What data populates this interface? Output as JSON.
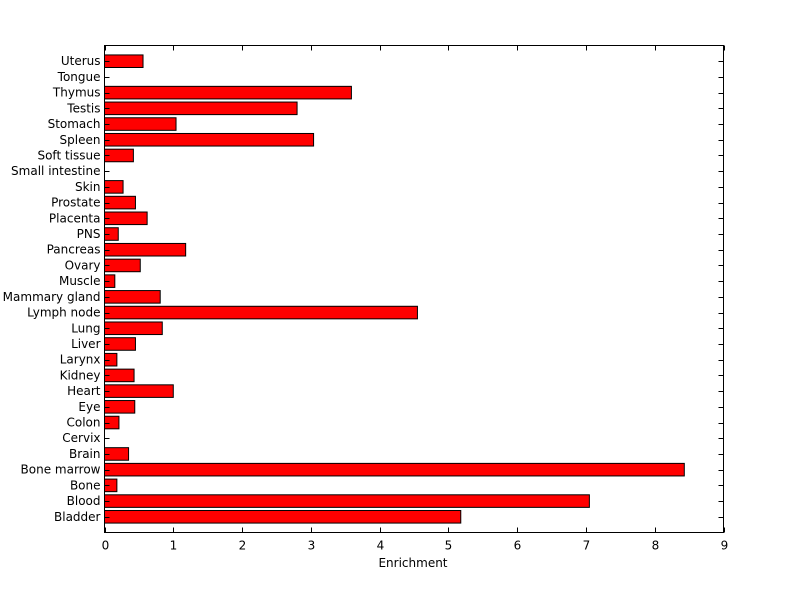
{
  "chart_data": {
    "type": "bar",
    "orientation": "horizontal",
    "categories": [
      "Bladder",
      "Blood",
      "Bone",
      "Bone marrow",
      "Brain",
      "Cervix",
      "Colon",
      "Eye",
      "Heart",
      "Kidney",
      "Larynx",
      "Liver",
      "Lung",
      "Lymph node",
      "Mammary gland",
      "Muscle",
      "Ovary",
      "Pancreas",
      "PNS",
      "Placenta",
      "Prostate",
      "Skin",
      "Small intestine",
      "Soft tissue",
      "Spleen",
      "Stomach",
      "Testis",
      "Thymus",
      "Tongue",
      "Uterus"
    ],
    "values": [
      5.18,
      7.05,
      0.18,
      8.43,
      0.35,
      0.0,
      0.21,
      0.44,
      1.0,
      0.43,
      0.18,
      0.45,
      0.84,
      4.55,
      0.81,
      0.15,
      0.52,
      1.18,
      0.2,
      0.62,
      0.45,
      0.27,
      0.0,
      0.42,
      3.04,
      1.04,
      2.8,
      3.59,
      0.0,
      0.56
    ],
    "title": "",
    "xlabel": "Enrichment",
    "ylabel": "",
    "xlim": [
      0,
      9
    ],
    "xticks": [
      0,
      1,
      2,
      3,
      4,
      5,
      6,
      7,
      8,
      9
    ],
    "grid": false,
    "legend": "none",
    "bar_color": "#ff0000",
    "edge_color": "#000000"
  }
}
